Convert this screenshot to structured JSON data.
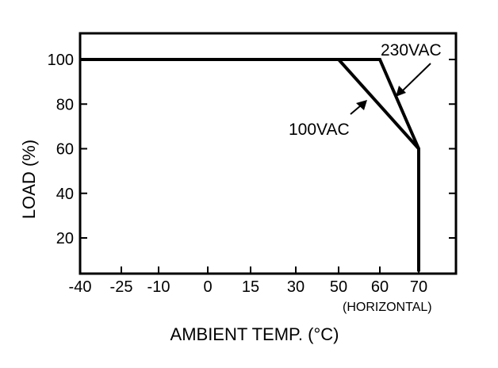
{
  "chart_data": {
    "type": "line",
    "title": "",
    "xlabel": "AMBIENT TEMP. (°C)",
    "ylabel": "LOAD (%)",
    "x_note": "(HORIZONTAL)",
    "x_ticks": [
      "-40",
      "-25",
      "-10",
      "0",
      "15",
      "30",
      "50",
      "60",
      "70"
    ],
    "y_ticks": [
      "100",
      "80",
      "60",
      "40",
      "20"
    ],
    "y_tick_values": [
      100,
      80,
      60,
      40,
      20
    ],
    "ylim": [
      5,
      112
    ],
    "series": [
      {
        "name": "230VAC",
        "x": [
          -40,
          60,
          70,
          70
        ],
        "y": [
          100,
          100,
          60,
          5
        ]
      },
      {
        "name": "100VAC",
        "x": [
          -40,
          50,
          70,
          70
        ],
        "y": [
          100,
          100,
          60,
          5
        ]
      }
    ],
    "annotations": [
      {
        "text": "230VAC",
        "series": "230VAC"
      },
      {
        "text": "100VAC",
        "series": "100VAC"
      }
    ]
  }
}
